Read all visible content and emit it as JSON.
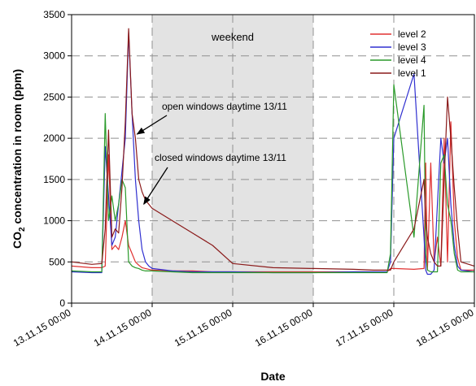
{
  "chart_data": {
    "type": "line",
    "title": "",
    "xlabel": "Date",
    "ylabel_prefix": "CO",
    "ylabel_sub": "2",
    "ylabel_suffix": " concentration in room (ppm)",
    "xlim": [
      "13.11.15 00:00",
      "18.11.15 00:00"
    ],
    "ylim": [
      0,
      3500
    ],
    "y_ticks": [
      0,
      500,
      1000,
      1500,
      2000,
      2500,
      3000,
      3500
    ],
    "x_tick_labels": [
      "13.11.15 00:00",
      "14.11.15 00:00",
      "15.11.15 00:00",
      "16.11.15 00:00",
      "17.11.15 00:00",
      "18.11.15 00:00"
    ],
    "grid": true,
    "legend_position": "top-right",
    "shaded_region": {
      "from": "14.11.15 00:00",
      "to": "16.11.15 00:00",
      "label": "weekend",
      "color": "#e3e3e3"
    },
    "annotations": [
      {
        "text": "open windows daytime 13/11",
        "target_x": "13.11.15 19:30",
        "target_y": 2050
      },
      {
        "text": "closed windows daytime 13/11",
        "target_x": "13.11.15 21:30",
        "target_y": 1200
      }
    ],
    "series": [
      {
        "name": "level 2",
        "color": "#e03030",
        "x": [
          "13.11.15 00:00",
          "13.11.15 06:00",
          "13.11.15 09:00",
          "13.11.15 10:00",
          "13.11.15 11:00",
          "13.11.15 12:00",
          "13.11.15 13:00",
          "13.11.15 14:00",
          "13.11.15 15:00",
          "13.11.15 16:00",
          "13.11.15 17:00",
          "13.11.15 18:00",
          "13.11.15 19:00",
          "13.11.15 20:00",
          "13.11.15 21:00",
          "13.11.15 22:00",
          "14.11.15 00:00",
          "14.11.15 06:00",
          "14.11.15 12:00",
          "14.11.15 18:00",
          "15.11.15 00:00",
          "15.11.15 12:00",
          "16.11.15 00:00",
          "16.11.15 12:00",
          "16.11.15 18:00",
          "16.11.15 21:00",
          "16.11.15 22:00",
          "16.11.15 23:00",
          "17.11.15 00:00",
          "17.11.15 06:00",
          "17.11.15 09:00",
          "17.11.15 09:30",
          "17.11.15 10:00",
          "17.11.15 11:00",
          "17.11.15 12:00",
          "17.11.15 13:00",
          "17.11.15 14:00",
          "17.11.15 15:00",
          "17.11.15 16:00",
          "17.11.15 17:00",
          "17.11.15 18:00",
          "17.11.15 19:00",
          "17.11.15 20:00",
          "18.11.15 00:00"
        ],
        "values": [
          450,
          430,
          430,
          450,
          1800,
          650,
          700,
          650,
          800,
          1000,
          700,
          600,
          500,
          460,
          430,
          420,
          400,
          390,
          390,
          380,
          380,
          380,
          380,
          380,
          380,
          380,
          380,
          420,
          420,
          410,
          420,
          1700,
          400,
          1700,
          500,
          800,
          450,
          2000,
          500,
          2200,
          1000,
          550,
          400,
          400
        ]
      },
      {
        "name": "level 3",
        "color": "#3030d0",
        "x": [
          "13.11.15 00:00",
          "13.11.15 06:00",
          "13.11.15 09:00",
          "13.11.15 10:00",
          "13.11.15 11:00",
          "13.11.15 12:00",
          "13.11.15 13:00",
          "13.11.15 14:00",
          "13.11.15 15:00",
          "13.11.15 16:00",
          "13.11.15 17:00",
          "13.11.15 18:00",
          "13.11.15 19:00",
          "13.11.15 20:00",
          "13.11.15 21:00",
          "13.11.15 22:00",
          "13.11.15 23:00",
          "14.11.15 00:00",
          "14.11.15 06:00",
          "14.11.15 12:00",
          "14.11.15 18:00",
          "15.11.15 00:00",
          "15.11.15 12:00",
          "16.11.15 00:00",
          "16.11.15 12:00",
          "16.11.15 18:00",
          "16.11.15 21:00",
          "16.11.15 22:00",
          "16.11.15 23:00",
          "17.11.15 00:00",
          "17.11.15 06:00",
          "17.11.15 09:00",
          "17.11.15 09:30",
          "17.11.15 10:00",
          "17.11.15 11:00",
          "17.11.15 12:00",
          "17.11.15 13:00",
          "17.11.15 14:00",
          "17.11.15 15:00",
          "17.11.15 16:00",
          "17.11.15 17:00",
          "17.11.15 18:00",
          "17.11.15 19:00",
          "17.11.15 20:00",
          "18.11.15 00:00"
        ],
        "values": [
          380,
          370,
          370,
          1900,
          1300,
          700,
          800,
          1200,
          1600,
          2000,
          3280,
          2300,
          1500,
          1000,
          650,
          500,
          450,
          420,
          390,
          380,
          380,
          380,
          370,
          370,
          380,
          380,
          380,
          380,
          500,
          2000,
          2780,
          800,
          400,
          350,
          350,
          400,
          1200,
          2000,
          1700,
          2000,
          1200,
          700,
          450,
          400,
          380
        ]
      },
      {
        "name": "level 4",
        "color": "#2a9a2a",
        "x": [
          "13.11.15 00:00",
          "13.11.15 06:00",
          "13.11.15 09:00",
          "13.11.15 10:00",
          "13.11.15 11:00",
          "13.11.15 12:00",
          "13.11.15 13:00",
          "13.11.15 14:00",
          "13.11.15 15:00",
          "13.11.15 16:00",
          "13.11.15 17:00",
          "13.11.15 18:00",
          "13.11.15 19:00",
          "13.11.15 20:00",
          "13.11.15 21:00",
          "13.11.15 22:00",
          "14.11.15 00:00",
          "14.11.15 06:00",
          "14.11.15 12:00",
          "14.11.15 18:00",
          "15.11.15 00:00",
          "15.11.15 12:00",
          "16.11.15 00:00",
          "16.11.15 12:00",
          "16.11.15 18:00",
          "16.11.15 21:00",
          "16.11.15 22:00",
          "16.11.15 23:00",
          "17.11.15 00:00",
          "17.11.15 06:00",
          "17.11.15 09:00",
          "17.11.15 09:30",
          "17.11.15 10:00",
          "17.11.15 11:00",
          "17.11.15 12:00",
          "17.11.15 13:00",
          "17.11.15 14:00",
          "17.11.15 15:00",
          "17.11.15 16:00",
          "17.11.15 17:00",
          "17.11.15 18:00",
          "17.11.15 19:00",
          "17.11.15 20:00",
          "18.11.15 00:00"
        ],
        "values": [
          390,
          380,
          380,
          2300,
          1000,
          1300,
          1000,
          1200,
          1500,
          1400,
          500,
          450,
          430,
          420,
          400,
          390,
          390,
          380,
          370,
          370,
          370,
          370,
          370,
          370,
          370,
          370,
          370,
          600,
          2650,
          800,
          2400,
          600,
          400,
          380,
          380,
          380,
          1700,
          1800,
          1200,
          1000,
          600,
          400,
          380,
          380
        ]
      },
      {
        "name": "level 1",
        "color": "#8a1a1a",
        "x": [
          "13.11.15 00:00",
          "13.11.15 06:00",
          "13.11.15 09:00",
          "13.11.15 10:00",
          "13.11.15 11:00",
          "13.11.15 12:00",
          "13.11.15 13:00",
          "13.11.15 14:00",
          "13.11.15 15:00",
          "13.11.15 16:00",
          "13.11.15 17:00",
          "13.11.15 18:00",
          "13.11.15 19:00",
          "13.11.15 20:00",
          "13.11.15 21:00",
          "13.11.15 22:00",
          "14.11.15 00:00",
          "14.11.15 06:00",
          "14.11.15 12:00",
          "14.11.15 18:00",
          "15.11.15 00:00",
          "15.11.15 12:00",
          "16.11.15 00:00",
          "16.11.15 12:00",
          "16.11.15 18:00",
          "16.11.15 21:00",
          "16.11.15 22:00",
          "16.11.15 23:00",
          "17.11.15 00:00",
          "17.11.15 06:00",
          "17.11.15 09:00",
          "17.11.15 09:30",
          "17.11.15 10:00",
          "17.11.15 11:00",
          "17.11.15 12:00",
          "17.11.15 13:00",
          "17.11.15 14:00",
          "17.11.15 15:00",
          "17.11.15 16:00",
          "17.11.15 17:00",
          "17.11.15 18:00",
          "17.11.15 19:00",
          "17.11.15 20:00",
          "18.11.15 00:00"
        ],
        "values": [
          500,
          470,
          480,
          900,
          2100,
          800,
          900,
          850,
          1400,
          2200,
          3330,
          2300,
          2000,
          1500,
          1350,
          1250,
          1150,
          1000,
          850,
          700,
          480,
          430,
          420,
          410,
          400,
          400,
          400,
          400,
          500,
          900,
          1500,
          1000,
          800,
          600,
          500,
          450,
          450,
          1500,
          2500,
          2000,
          1400,
          900,
          500,
          450
        ]
      }
    ]
  }
}
